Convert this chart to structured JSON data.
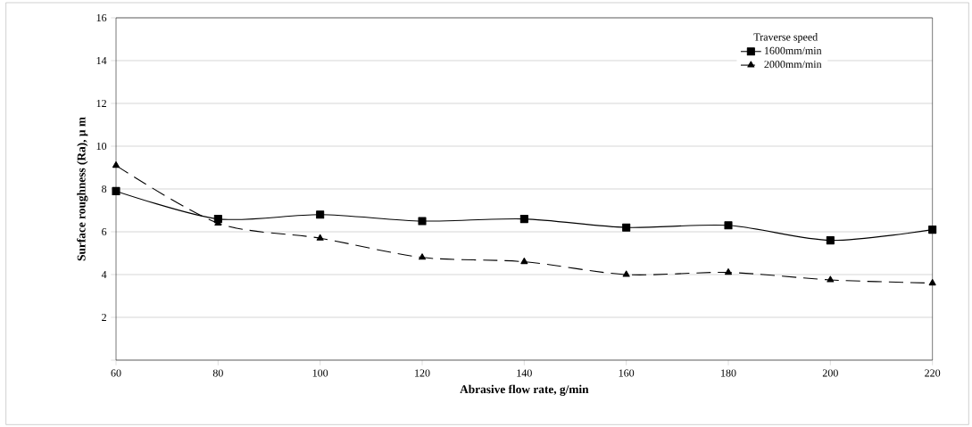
{
  "chart_data": {
    "type": "line",
    "xlabel": "Abrasive flow rate, g/min",
    "ylabel": "Surface roughness (Ra), µ m",
    "categories": [
      "60",
      "80",
      "100",
      "120",
      "140",
      "160",
      "180",
      "200",
      "220"
    ],
    "ylim": [
      0,
      16
    ],
    "yticks": [
      {
        "value": 0,
        "label": null
      },
      2,
      4,
      6,
      8,
      10,
      12,
      14,
      16
    ],
    "grid": "y",
    "legend": "top right",
    "legend_title": "Traverse speed",
    "series": [
      {
        "name": "1600mm/min",
        "color": "#000000",
        "marker": "square",
        "line_style": "solid",
        "values": [
          7.9,
          6.6,
          6.8,
          6.5,
          6.6,
          6.2,
          6.3,
          5.6,
          6.1
        ]
      },
      {
        "name": "2000mm/min",
        "color": "#000000",
        "marker": "triangle",
        "line_style": "dashed",
        "values": [
          9.1,
          6.4,
          5.7,
          4.8,
          4.6,
          4.0,
          4.1,
          3.75,
          3.6
        ]
      }
    ]
  }
}
